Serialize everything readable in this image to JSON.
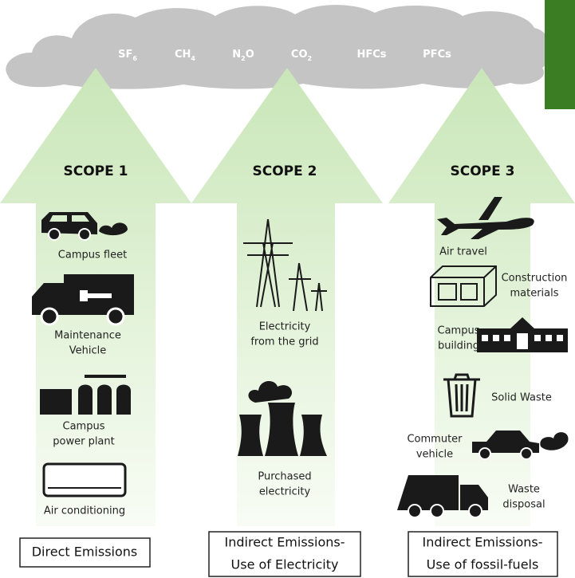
{
  "gases": [
    {
      "text": "SF",
      "sub": "6"
    },
    {
      "text": "CH",
      "sub": "4"
    },
    {
      "text": "N",
      "sub": "2",
      "after": "O"
    },
    {
      "text": "CO",
      "sub": "2"
    },
    {
      "text": "HFCs"
    },
    {
      "text": "PFCs"
    }
  ],
  "scopes": [
    {
      "title": "SCOPE 1",
      "items": [
        {
          "label": [
            "Campus fleet"
          ]
        },
        {
          "label": [
            "Maintenance",
            "Vehicle"
          ]
        },
        {
          "label": [
            "Campus",
            "power plant"
          ]
        },
        {
          "label": [
            "Air conditioning"
          ]
        }
      ],
      "footer": [
        "Direct Emissions"
      ]
    },
    {
      "title": "SCOPE 2",
      "items": [
        {
          "label": [
            "Electricity",
            "from the grid"
          ]
        },
        {
          "label": [
            "Purchased",
            "electricity"
          ]
        }
      ],
      "footer": [
        "Indirect Emissions-",
        "Use of Electricity"
      ]
    },
    {
      "title": "SCOPE 3",
      "items": [
        {
          "label": [
            "Air travel"
          ]
        },
        {
          "label": [
            "Construction",
            "materials"
          ]
        },
        {
          "label": [
            "Campus",
            "building"
          ]
        },
        {
          "label": [
            "Solid Waste"
          ]
        },
        {
          "label": [
            "Commuter",
            "vehicle"
          ]
        },
        {
          "label": [
            "Waste",
            "disposal"
          ]
        }
      ],
      "footer": [
        "Indirect Emissions-",
        "Use of fossil-fuels"
      ]
    }
  ]
}
